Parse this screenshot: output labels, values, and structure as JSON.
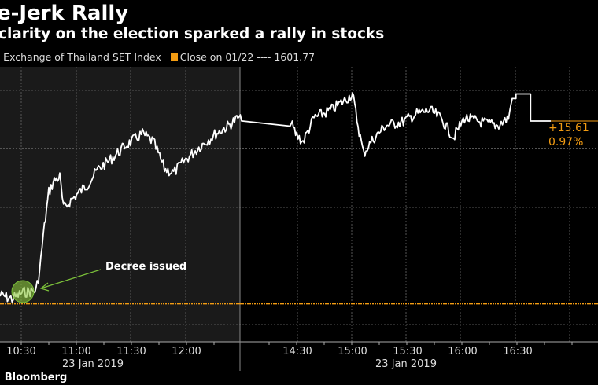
{
  "header": {
    "title": "e-Jerk Rally",
    "subtitle": "clarity on the election sparked a rally in stocks"
  },
  "legend": {
    "series_label": ": Exchange of Thailand SET Index",
    "close_label": "Close on 01/22 ---- 1601.77",
    "close_color": "#f39c12"
  },
  "footer": {
    "source": ": Bloomberg"
  },
  "chart_data": {
    "type": "line",
    "title": "e-Jerk Rally",
    "colors": {
      "line": "#ffffff",
      "close": "#f39c12",
      "annotation": "#7cc23a",
      "morning_bg": "#1a1a1a"
    },
    "close_value": 1601.77,
    "ylim": [
      1598.3,
      1621.8
    ],
    "y_gridlines": [
      1600,
      1605,
      1610,
      1615,
      1620
    ],
    "grid": true,
    "x_tick_labels": [
      "10:30",
      "11:00",
      "11:30",
      "12:00",
      "14:30",
      "15:00",
      "15:30",
      "16:00",
      "16:30"
    ],
    "date_labels": [
      "23 Jan 2019",
      "23 Jan 2019"
    ],
    "last_change": "+15.61",
    "last_change_pct": "0.97%",
    "annotation": {
      "text": "Decree issued",
      "time": "10:30"
    },
    "series": [
      {
        "x": [
          "10:18",
          "10:25",
          "10:31",
          "10:38",
          "10:40",
          "10:42",
          "10:45",
          "10:48",
          "10:51",
          "10:53",
          "10:57",
          "11:06",
          "11:12",
          "11:18",
          "11:27",
          "11:36",
          "11:42",
          "11:48",
          "11:53",
          "11:59",
          "12:08",
          "12:16",
          "12:23",
          "12:28",
          "12:30",
          "14:00",
          "14:26",
          "14:29",
          "14:33",
          "14:39",
          "14:48",
          "14:57",
          "15:00",
          "15:03",
          "15:06",
          "15:10",
          "15:18",
          "15:27",
          "15:35",
          "15:42",
          "15:48",
          "15:55",
          "16:01",
          "16:10",
          "16:19",
          "16:25",
          "16:27",
          "16:29",
          "16:36",
          "16:37",
          "16:48"
        ],
        "y": [
          1602.55,
          1602.2,
          1602.75,
          1602.9,
          1604.55,
          1607.6,
          1611.3,
          1612.3,
          1612.6,
          1609.9,
          1610.6,
          1611.95,
          1613.3,
          1614.0,
          1615.3,
          1616.3,
          1615.6,
          1613.3,
          1612.95,
          1614.0,
          1615.3,
          1616.3,
          1617.0,
          1617.65,
          1617.38,
          1617.38,
          1617.38,
          1616.3,
          1615.6,
          1617.65,
          1618.3,
          1619.3,
          1619.7,
          1617.0,
          1614.6,
          1615.6,
          1617.0,
          1617.3,
          1618.0,
          1618.3,
          1617.65,
          1616.0,
          1617.65,
          1617.3,
          1617.0,
          1617.65,
          1619.3,
          1619.7,
          1619.7,
          1617.38,
          1617.38
        ]
      }
    ]
  }
}
